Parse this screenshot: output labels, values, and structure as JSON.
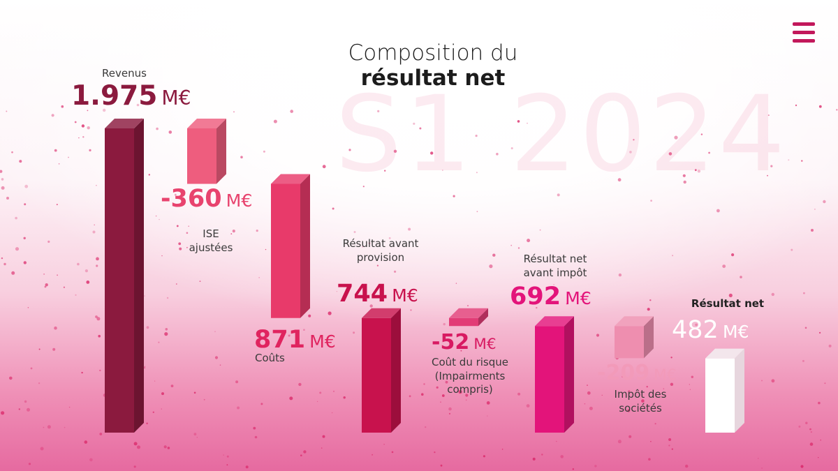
{
  "title": {
    "line1": "Composition du",
    "line2": "résultat net",
    "watermark": "S1 2024"
  },
  "menu": {
    "icon": "hamburger-menu-icon"
  },
  "colors": {
    "revenus": "#8b1a3e",
    "ise": "#ee5d7e",
    "couts": "#e83a6a",
    "resultat_avant_provision": "#c8124d",
    "cout_du_risque": "#e23c76",
    "resultat_avant_impot": "#e3147a",
    "impot": "#ee8eaf",
    "resultat_net": "#ffffff"
  },
  "chart_data": {
    "type": "bar",
    "title": "Composition du résultat net S1 2024",
    "unit": "M€",
    "items": [
      {
        "key": "revenus",
        "label": "Revenus",
        "value": "1.975",
        "unit": "M€",
        "base": 0,
        "amount": 1975
      },
      {
        "key": "ise",
        "label": "ISE ajustées",
        "value": "-360",
        "unit": "M€",
        "base": 1615,
        "amount": 360
      },
      {
        "key": "couts",
        "label": "Coûts",
        "value": "871",
        "unit": "M€",
        "base": 744,
        "amount": 871
      },
      {
        "key": "resultat_avant_provision",
        "label": "Résultat avant provision",
        "value": "744",
        "unit": "M€",
        "base": 0,
        "amount": 744
      },
      {
        "key": "cout_du_risque",
        "label": "Coût du risque (Impairments compris)",
        "value": "-52",
        "unit": "M€",
        "base": 692,
        "amount": 52
      },
      {
        "key": "resultat_avant_impot",
        "label": "Résultat net avant impôt",
        "value": "692",
        "unit": "M€",
        "base": 0,
        "amount": 692
      },
      {
        "key": "impot",
        "label": "Impôt des sociétés",
        "value": "-209",
        "unit": "M€",
        "base": 483,
        "amount": 209
      },
      {
        "key": "resultat_net",
        "label": "Résultat net",
        "value": "482",
        "unit": "M€",
        "base": 0,
        "amount": 482
      }
    ]
  }
}
